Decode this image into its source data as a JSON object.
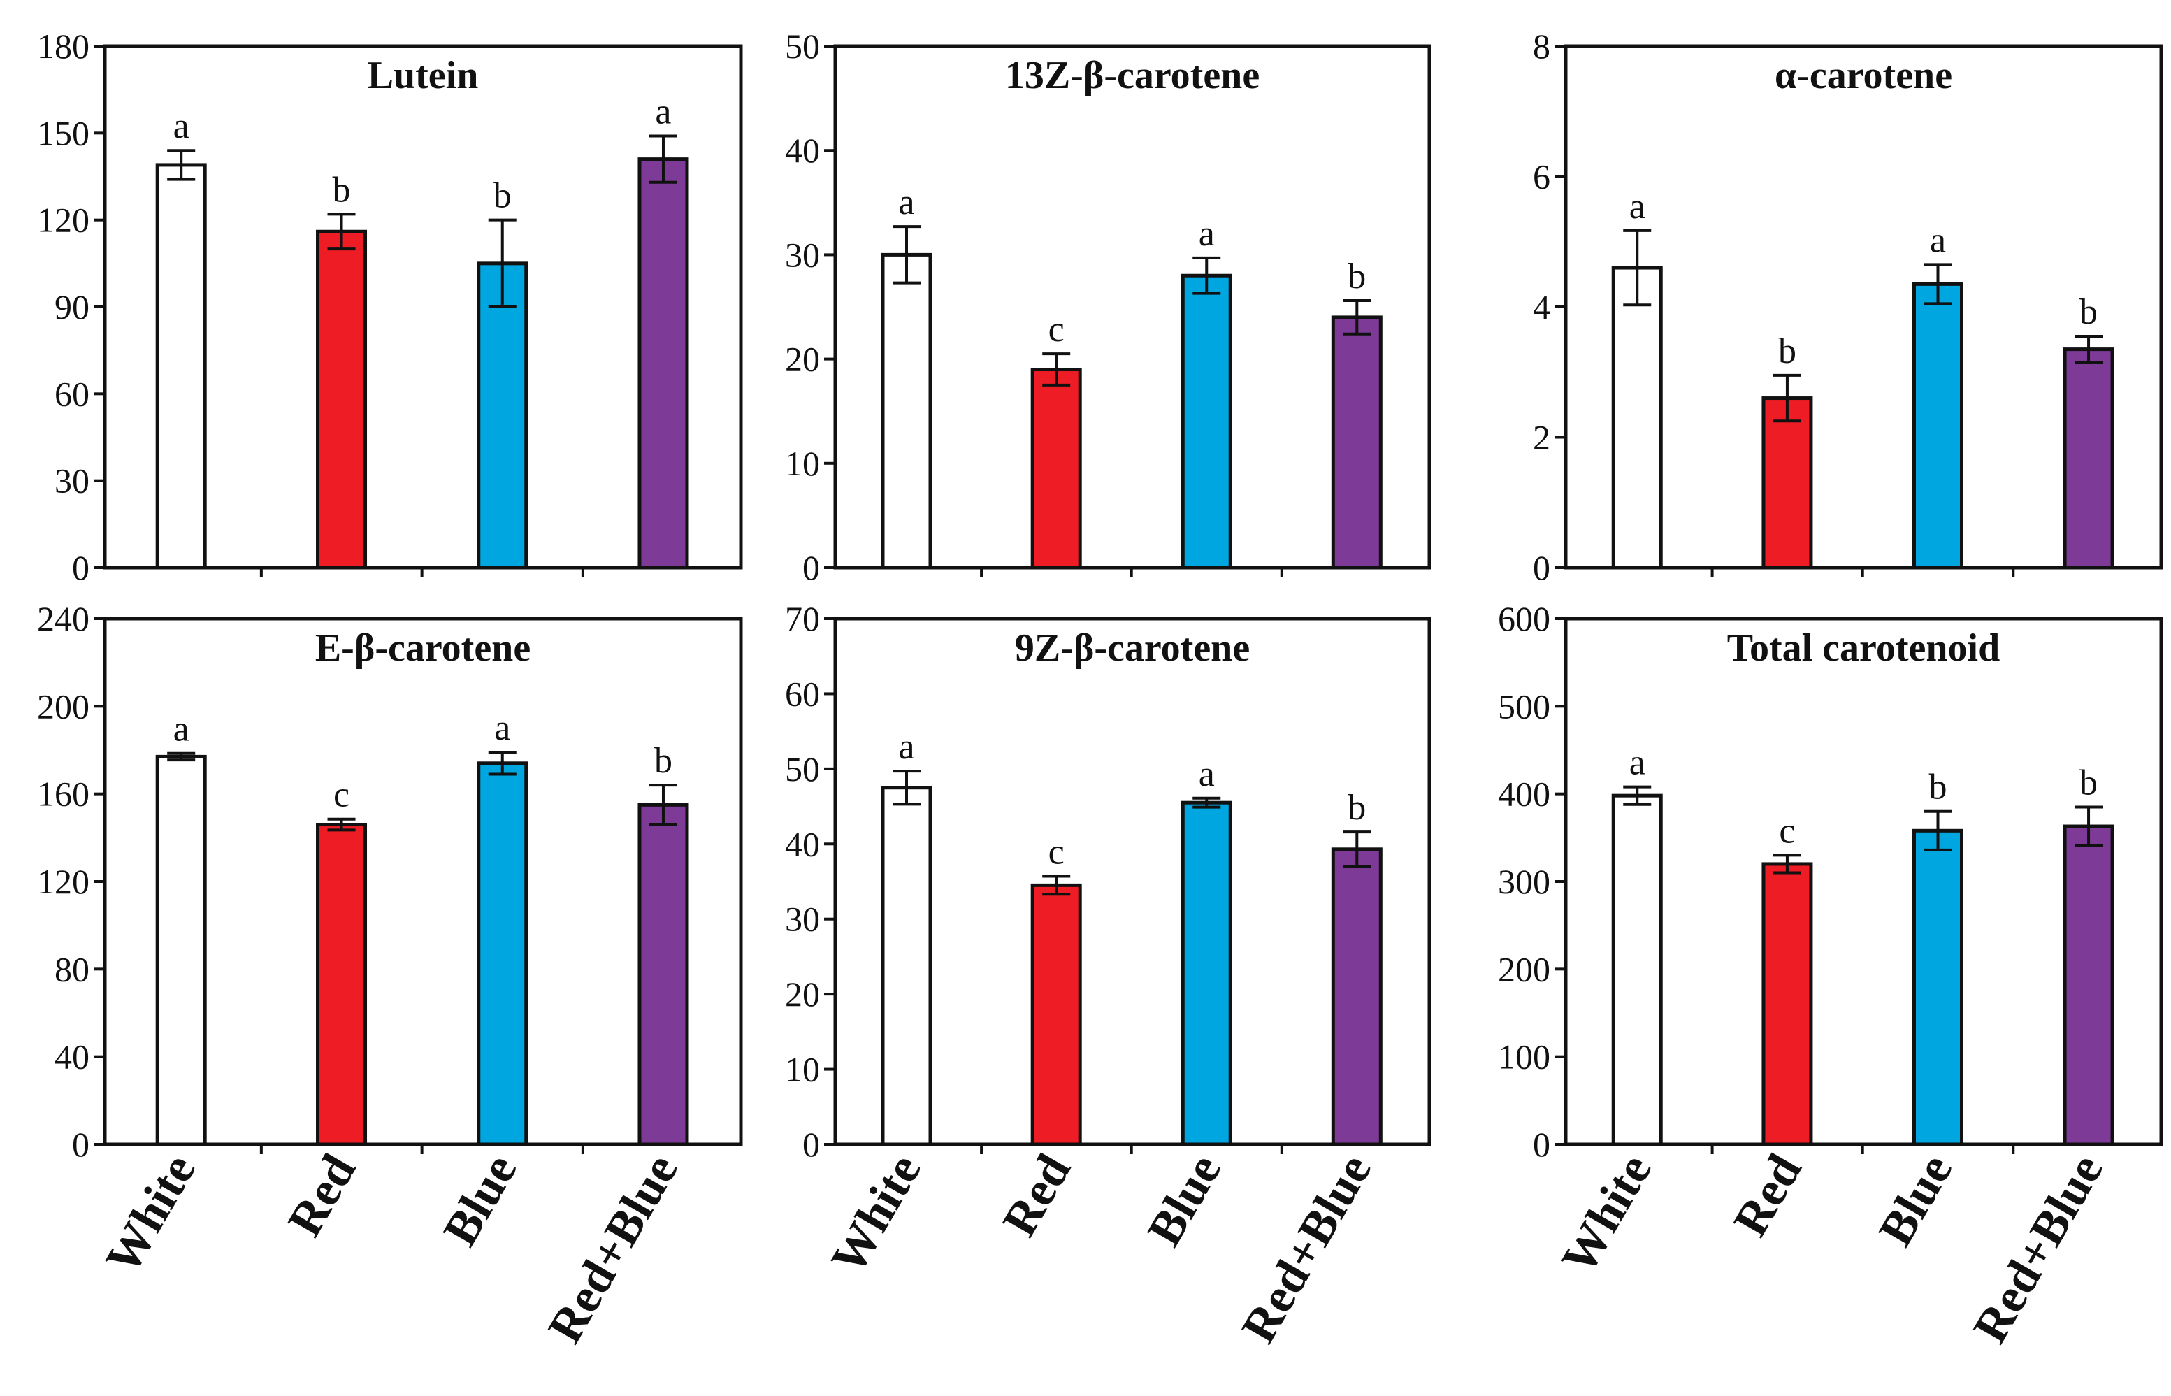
{
  "categories": [
    "White",
    "Red",
    "Blue",
    "Red+Blue"
  ],
  "colors": {
    "White": "#ffffff",
    "Red": "#ee1c24",
    "Blue": "#00a6e0",
    "Red+Blue": "#7d3a96"
  },
  "chart_data": [
    {
      "type": "bar",
      "title": "Lutein",
      "categories": [
        "White",
        "Red",
        "Blue",
        "Red+Blue"
      ],
      "values": [
        139,
        116,
        105,
        141
      ],
      "errors": [
        5,
        6,
        15,
        8
      ],
      "letters": [
        "a",
        "b",
        "b",
        "a"
      ],
      "ylim": [
        0,
        180
      ],
      "yticks": [
        0,
        30,
        60,
        90,
        120,
        150,
        180
      ]
    },
    {
      "type": "bar",
      "title": "13Z-β-carotene",
      "categories": [
        "White",
        "Red",
        "Blue",
        "Red+Blue"
      ],
      "values": [
        30,
        19,
        28,
        24
      ],
      "errors": [
        2.7,
        1.5,
        1.7,
        1.6
      ],
      "letters": [
        "a",
        "c",
        "a",
        "b"
      ],
      "ylim": [
        0,
        50
      ],
      "yticks": [
        0,
        10,
        20,
        30,
        40,
        50
      ]
    },
    {
      "type": "bar",
      "title": "α-carotene",
      "categories": [
        "White",
        "Red",
        "Blue",
        "Red+Blue"
      ],
      "values": [
        4.6,
        2.6,
        4.35,
        3.35
      ],
      "errors": [
        0.57,
        0.35,
        0.3,
        0.2
      ],
      "letters": [
        "a",
        "b",
        "a",
        "b"
      ],
      "ylim": [
        0,
        8
      ],
      "yticks": [
        0,
        2,
        4,
        6,
        8
      ]
    },
    {
      "type": "bar",
      "title": "E-β-carotene",
      "categories": [
        "White",
        "Red",
        "Blue",
        "Red+Blue"
      ],
      "values": [
        177,
        146,
        174,
        155
      ],
      "errors": [
        1.5,
        2.5,
        5,
        9
      ],
      "letters": [
        "a",
        "c",
        "a",
        "b"
      ],
      "ylim": [
        0,
        240
      ],
      "yticks": [
        0,
        40,
        80,
        120,
        160,
        200,
        240
      ]
    },
    {
      "type": "bar",
      "title": "9Z-β-carotene",
      "categories": [
        "White",
        "Red",
        "Blue",
        "Red+Blue"
      ],
      "values": [
        47.5,
        34.5,
        45.5,
        39.3
      ],
      "errors": [
        2.2,
        1.2,
        0.6,
        2.3
      ],
      "letters": [
        "a",
        "c",
        "a",
        "b"
      ],
      "ylim": [
        0,
        70
      ],
      "yticks": [
        0,
        10,
        20,
        30,
        40,
        50,
        60,
        70
      ]
    },
    {
      "type": "bar",
      "title": "Total carotenoid",
      "categories": [
        "White",
        "Red",
        "Blue",
        "Red+Blue"
      ],
      "values": [
        398,
        320,
        358,
        363
      ],
      "errors": [
        10,
        10,
        22,
        22
      ],
      "letters": [
        "a",
        "c",
        "b",
        "b"
      ],
      "ylim": [
        0,
        600
      ],
      "yticks": [
        0,
        100,
        200,
        300,
        400,
        500,
        600
      ]
    }
  ]
}
